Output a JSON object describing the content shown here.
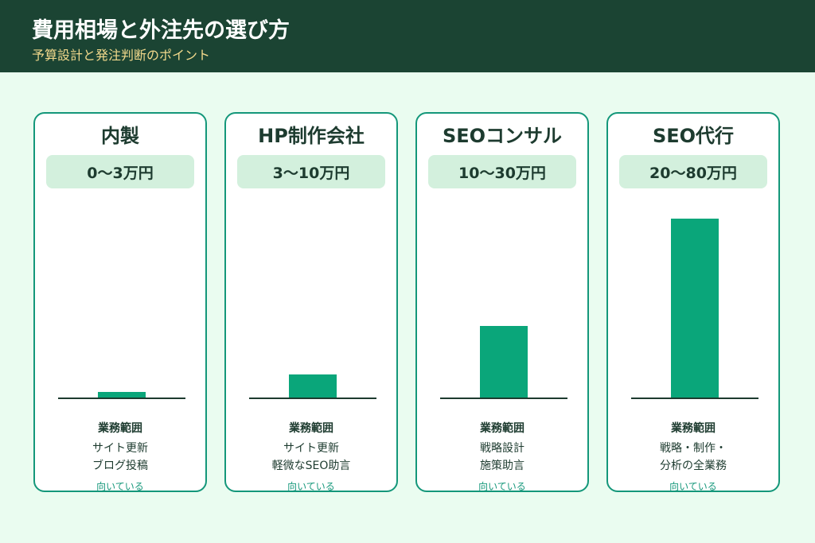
{
  "header": {
    "title": "費用相場と外注先の選び方",
    "subtitle": "予算設計と発注判断のポイント"
  },
  "colors": {
    "header_bg": "#1b4433",
    "subtitle": "#f2d98c",
    "page_bg": "#eafcf0",
    "card_border": "#14977a",
    "bar": "#0aa67a",
    "price_bg": "#d3f0dd"
  },
  "chart_data": {
    "type": "bar",
    "categories": [
      "内製",
      "HP制作会社",
      "SEOコンサル",
      "SEO代行"
    ],
    "price_ranges": [
      "0〜3万円",
      "3〜10万円",
      "10〜30万円",
      "20〜80万円"
    ],
    "values": [
      1.5,
      6.5,
      20,
      50
    ],
    "ylim": [
      0,
      50
    ],
    "grid": false,
    "legend": "none"
  },
  "cards": [
    {
      "name": "内製",
      "price": "0〜3万円",
      "scope_label": "業務範囲",
      "scope_line1": "サイト更新",
      "scope_line2": "ブログ投稿",
      "fit_label": "向いている"
    },
    {
      "name": "HP制作会社",
      "price": "3〜10万円",
      "scope_label": "業務範囲",
      "scope_line1": "サイト更新",
      "scope_line2": "軽微なSEO助言",
      "fit_label": "向いている"
    },
    {
      "name": "SEOコンサル",
      "price": "10〜30万円",
      "scope_label": "業務範囲",
      "scope_line1": "戦略設計",
      "scope_line2": "施策助言",
      "fit_label": "向いている"
    },
    {
      "name": "SEO代行",
      "price": "20〜80万円",
      "scope_label": "業務範囲",
      "scope_line1": "戦略・制作・",
      "scope_line2": "分析の全業務",
      "fit_label": "向いている"
    }
  ]
}
